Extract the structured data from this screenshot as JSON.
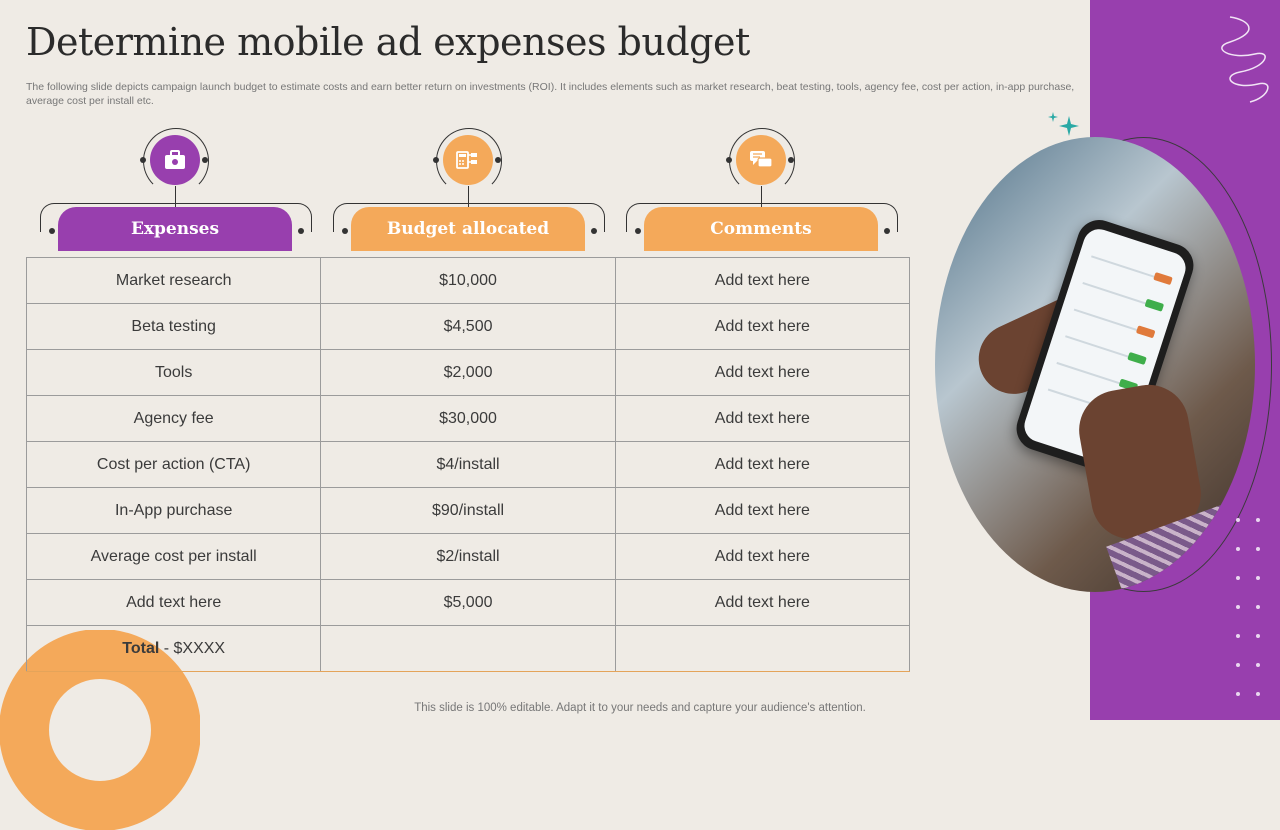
{
  "slide": {
    "title": "Determine mobile ad expenses budget",
    "subtitle": "The following slide depicts campaign launch budget to estimate costs and earn better return on investments (ROI). It includes elements such as market research, beat testing, tools, agency fee, cost per action, in-app purchase, average cost per install etc.",
    "footer": "This slide is 100% editable. Adapt it to your needs and capture your audience's attention."
  },
  "colors": {
    "purple": "#983fae",
    "orange": "#f4a95a",
    "background": "#efebe5"
  },
  "columns": [
    {
      "label": "Expenses",
      "icon": "briefcase-dollar-icon",
      "color": "#983fae"
    },
    {
      "label": "Budget allocated",
      "icon": "calculator-chart-icon",
      "color": "#f4a95a"
    },
    {
      "label": "Comments",
      "icon": "chat-bubbles-icon",
      "color": "#f4a95a"
    }
  ],
  "rows": [
    [
      "Market research",
      "$10,000",
      "Add text here"
    ],
    [
      "Beta testing",
      "$4,500",
      "Add text here"
    ],
    [
      "Tools",
      "$2,000",
      "Add text here"
    ],
    [
      "Agency fee",
      "$30,000",
      "Add text here"
    ],
    [
      "Cost per action (CTA)",
      "$4/install",
      "Add text here"
    ],
    [
      "In-App purchase",
      "$90/install",
      "Add text here"
    ],
    [
      "Average cost per install",
      "$2/install",
      "Add text here"
    ],
    [
      "Add text here",
      "$5,000",
      "Add text here"
    ]
  ],
  "total": {
    "label": "Total",
    "value": " - $XXXX",
    "budget": "",
    "comment": ""
  }
}
